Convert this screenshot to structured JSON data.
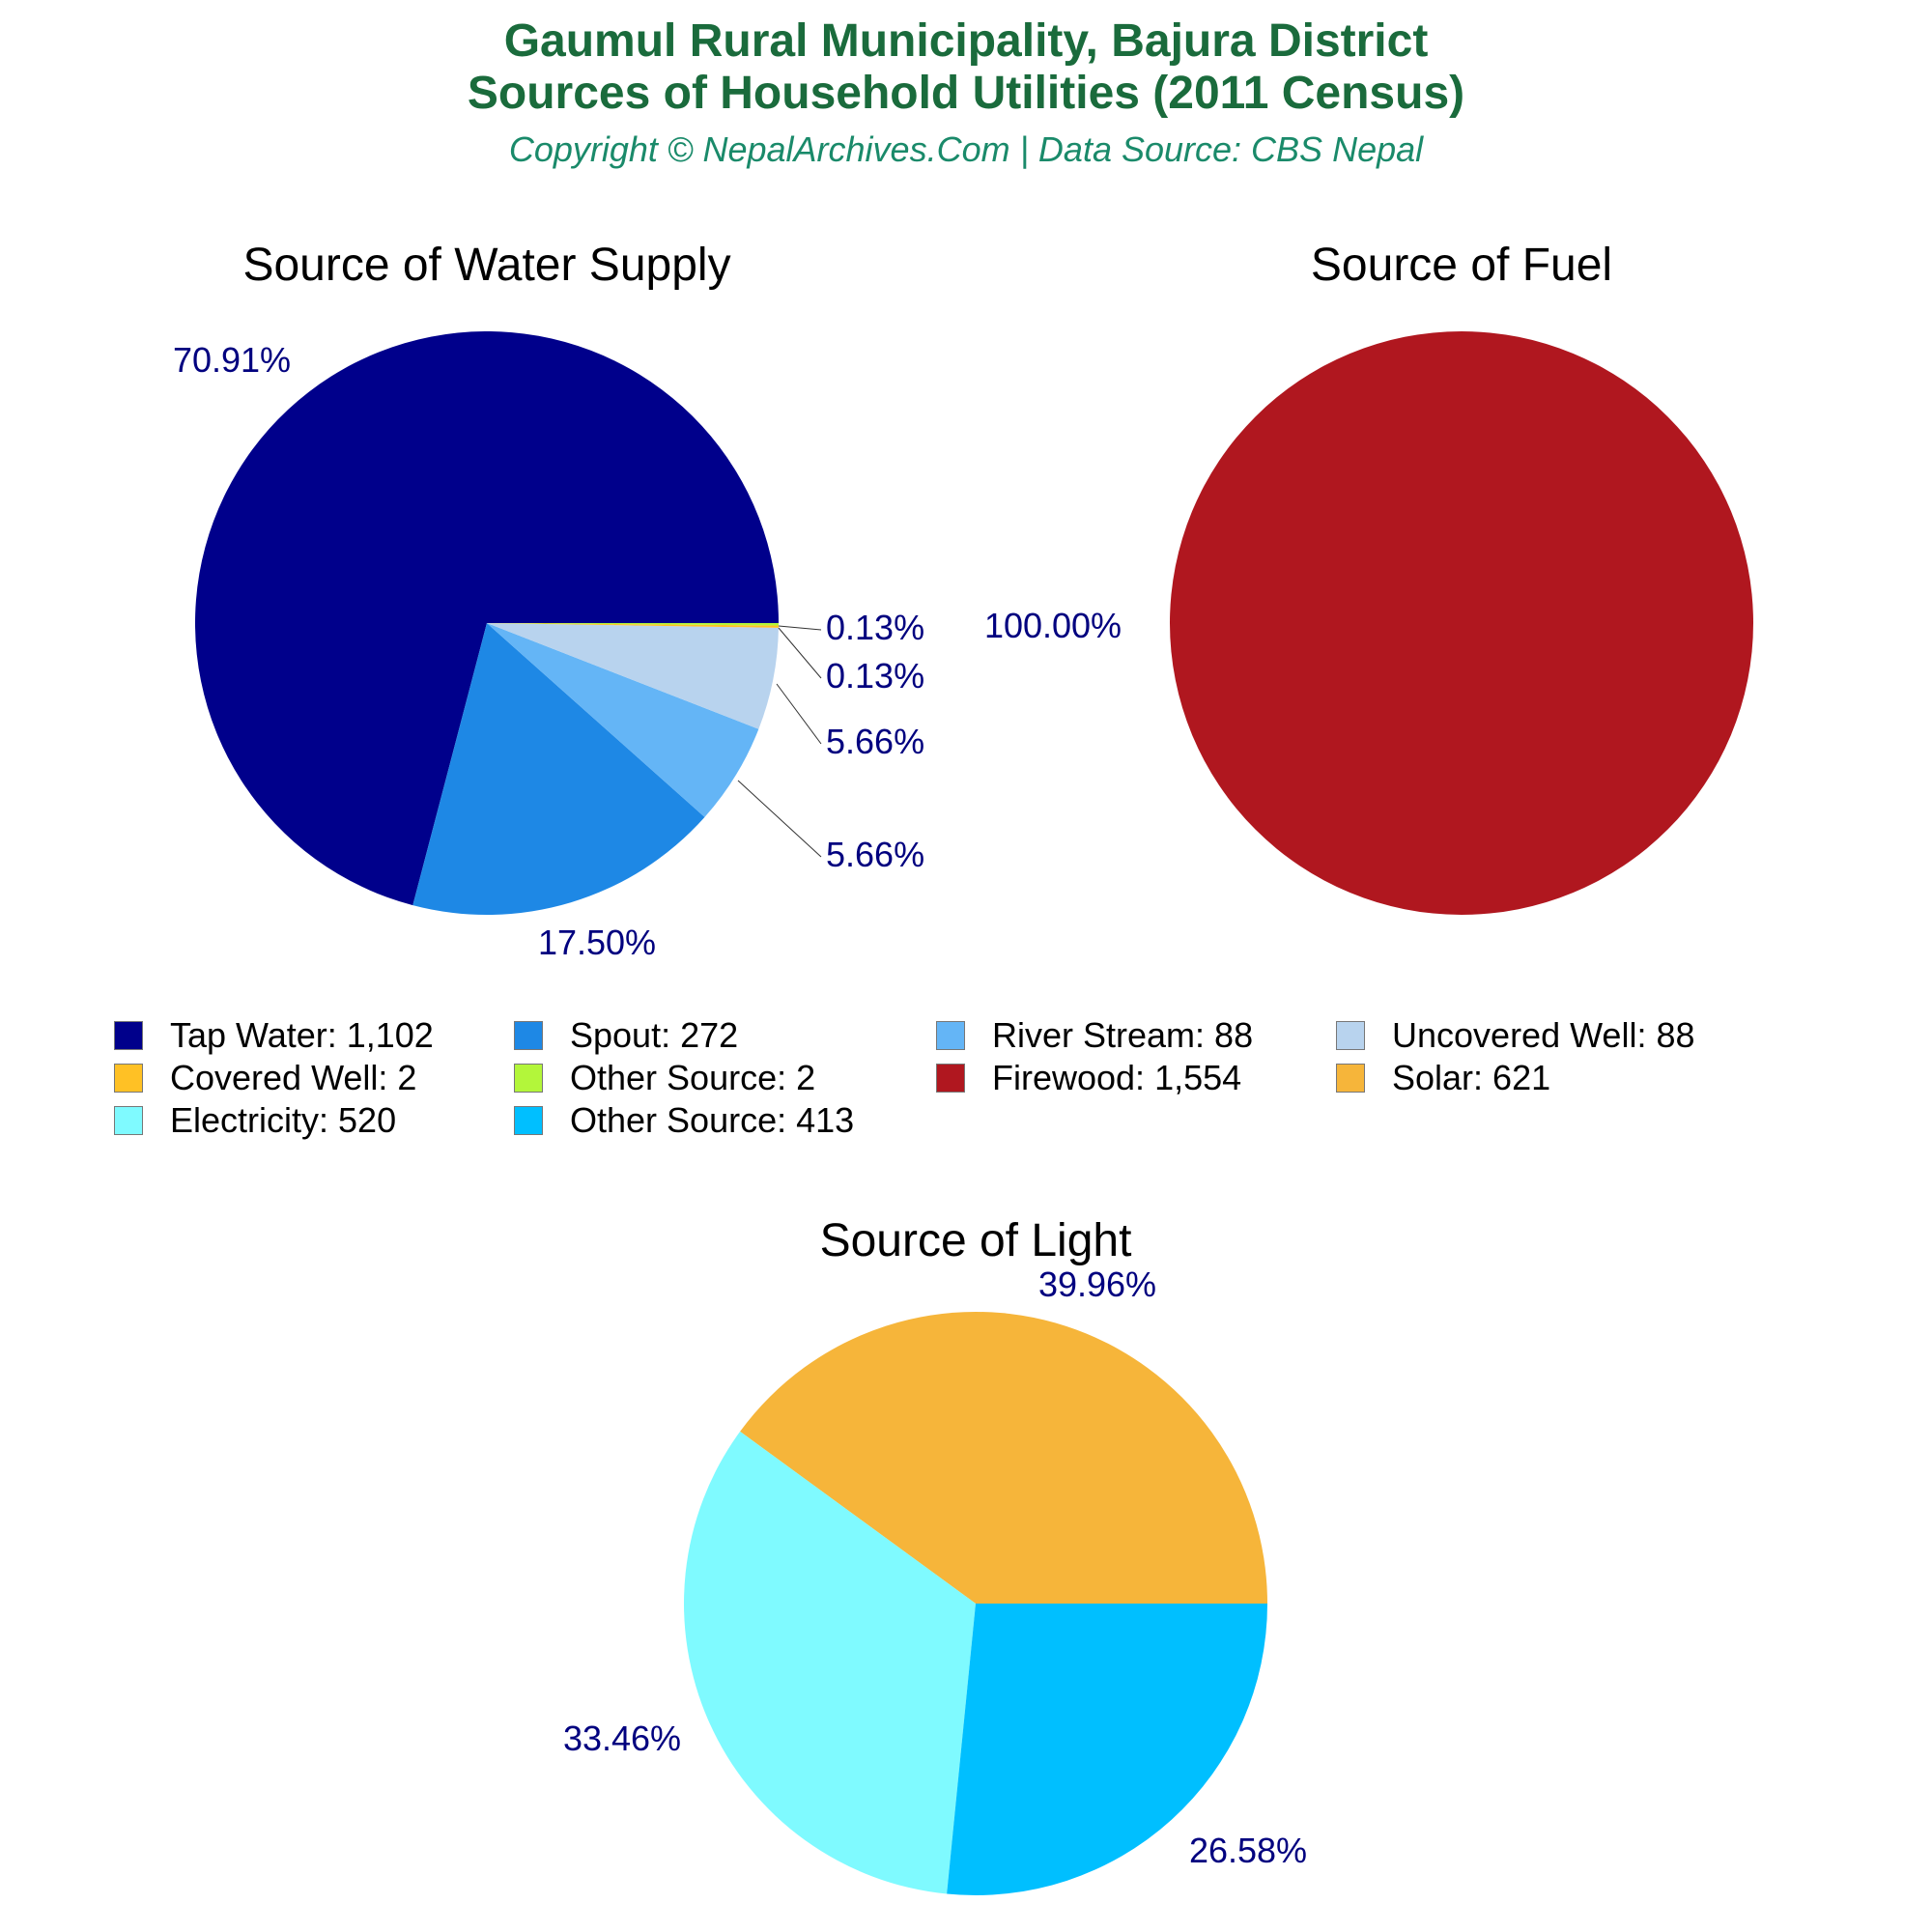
{
  "header": {
    "title_line1": "Gaumul Rural Municipality, Bajura District",
    "title_line2": "Sources of Household Utilities (2011 Census)",
    "subtitle": "Copyright © NepalArchives.Com | Data Source: CBS Nepal"
  },
  "colors": {
    "title": "#1a6b3c",
    "subtitle": "#1a8a6a",
    "pct_label": "#00007f",
    "leader_line": "#333333"
  },
  "chart_data": [
    {
      "type": "pie",
      "title": "Source of Water Supply",
      "slices": [
        {
          "name": "Tap Water",
          "value": 1102,
          "pct_label": "70.91%",
          "color": "#00008b"
        },
        {
          "name": "Spout",
          "value": 272,
          "pct_label": "17.50%",
          "color": "#1e88e5"
        },
        {
          "name": "River Stream",
          "value": 88,
          "pct_label": "5.66%",
          "color": "#64b5f6"
        },
        {
          "name": "Uncovered Well",
          "value": 88,
          "pct_label": "5.66%",
          "color": "#b8d3ee"
        },
        {
          "name": "Covered Well",
          "value": 2,
          "pct_label": "0.13%",
          "color": "#ffc125"
        },
        {
          "name": "Other Source",
          "value": 2,
          "pct_label": "0.13%",
          "color": "#b3f63a"
        }
      ]
    },
    {
      "type": "pie",
      "title": "Source of Fuel",
      "slices": [
        {
          "name": "Firewood",
          "value": 1554,
          "pct_label": "100.00%",
          "color": "#b0171f"
        }
      ]
    },
    {
      "type": "pie",
      "title": "Source of Light",
      "slices": [
        {
          "name": "Solar",
          "value": 621,
          "pct_label": "39.96%",
          "color": "#f6b53a"
        },
        {
          "name": "Electricity",
          "value": 520,
          "pct_label": "33.46%",
          "color": "#7ffaff"
        },
        {
          "name": "Other Source",
          "value": 413,
          "pct_label": "26.58%",
          "color": "#00bfff"
        }
      ]
    }
  ],
  "legend": [
    {
      "label": "Tap Water: 1,102",
      "color": "#00008b"
    },
    {
      "label": "Spout: 272",
      "color": "#1e88e5"
    },
    {
      "label": "River Stream: 88",
      "color": "#64b5f6"
    },
    {
      "label": "Uncovered Well: 88",
      "color": "#b8d3ee"
    },
    {
      "label": "Covered Well: 2",
      "color": "#ffc125"
    },
    {
      "label": "Other Source: 2",
      "color": "#b3f63a"
    },
    {
      "label": "Firewood: 1,554",
      "color": "#b0171f"
    },
    {
      "label": "Solar: 621",
      "color": "#f6b53a"
    },
    {
      "label": "Electricity: 520",
      "color": "#7ffaff"
    },
    {
      "label": "Other Source: 413",
      "color": "#00bfff"
    }
  ]
}
